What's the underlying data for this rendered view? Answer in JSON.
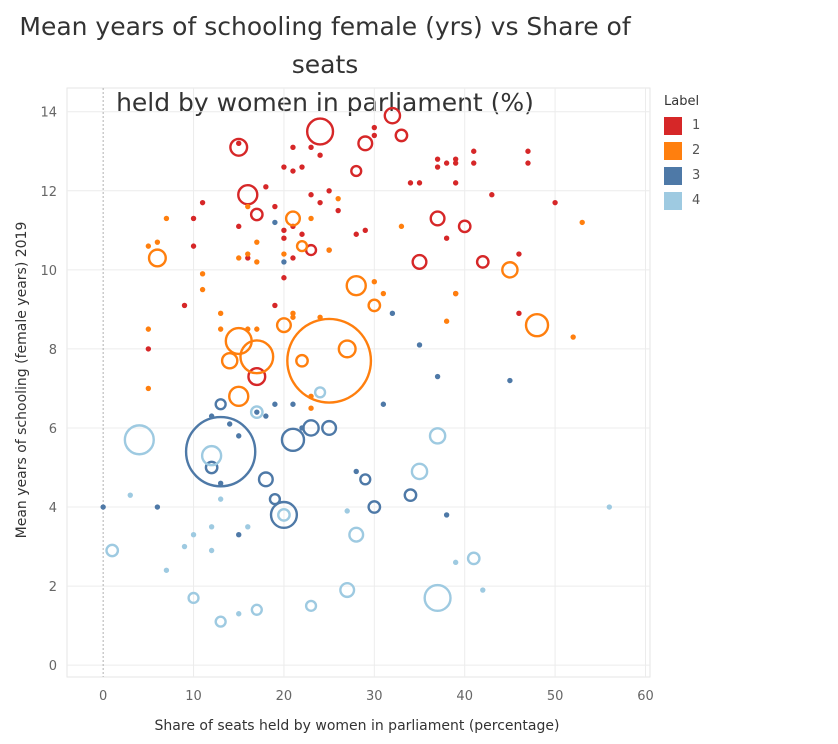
{
  "chart_data": {
    "type": "scatter",
    "title": "Mean years of schooling female (yrs) vs Share of seats held by women in parliament (%)",
    "title_lines": [
      "Mean years of schooling female (yrs) vs Share of seats",
      "held by women in parliament (%)"
    ],
    "xlabel": "Share of seats held by women in parliament (percentage)",
    "ylabel": "Mean years of schooling (female years) 2019",
    "xlim": [
      -4,
      60.5
    ],
    "ylim": [
      -0.3,
      14.6
    ],
    "xticks": [
      0,
      10,
      20,
      30,
      40,
      50,
      60
    ],
    "yticks": [
      0,
      2,
      4,
      6,
      8,
      10,
      12,
      14
    ],
    "grid": true,
    "legend": {
      "title": "Label",
      "placement": "right"
    },
    "series": [
      {
        "name": "1",
        "color": "#d62728",
        "points": [
          [
            15,
            13.1,
            2.2
          ],
          [
            15,
            13.2,
            0.6
          ],
          [
            21,
            13.1,
            0.6
          ],
          [
            23,
            13.1,
            0.9
          ],
          [
            24,
            13.5,
            3.4
          ],
          [
            24,
            12.9,
            0.6
          ],
          [
            28,
            12.5,
            1.3
          ],
          [
            29,
            13.2,
            1.8
          ],
          [
            30,
            13.6,
            0.6
          ],
          [
            30,
            13.4,
            0.6
          ],
          [
            32,
            13.9,
            2.0
          ],
          [
            33,
            13.4,
            1.5
          ],
          [
            37,
            12.8,
            1.1
          ],
          [
            37,
            12.6,
            0.6
          ],
          [
            38,
            12.7,
            0.6
          ],
          [
            39,
            12.7,
            0.6
          ],
          [
            39,
            12.8,
            0.6
          ],
          [
            41,
            13.0,
            0.6
          ],
          [
            41,
            12.7,
            0.6
          ],
          [
            47,
            13.0,
            0.6
          ],
          [
            47,
            12.7,
            0.9
          ],
          [
            11,
            11.7,
            0.6
          ],
          [
            16,
            11.9,
            2.5
          ],
          [
            17,
            11.4,
            1.5
          ],
          [
            18,
            12.1,
            0.6
          ],
          [
            19,
            11.6,
            0.6
          ],
          [
            20,
            12.6,
            0.6
          ],
          [
            21,
            12.5,
            0.6
          ],
          [
            22,
            12.6,
            0.6
          ],
          [
            23,
            11.9,
            0.6
          ],
          [
            24,
            11.7,
            0.6
          ],
          [
            25,
            12.0,
            0.6
          ],
          [
            26,
            11.5,
            0.9
          ],
          [
            34,
            12.2,
            0.9
          ],
          [
            35,
            12.2,
            0.9
          ],
          [
            39,
            12.2,
            0.9
          ],
          [
            43,
            11.9,
            0.9
          ],
          [
            50,
            11.7,
            0.6
          ],
          [
            10,
            11.3,
            0.6
          ],
          [
            10,
            10.6,
            0.6
          ],
          [
            15,
            11.1,
            0.6
          ],
          [
            16,
            10.3,
            1.1
          ],
          [
            20,
            10.8,
            1.1
          ],
          [
            20,
            11.0,
            0.6
          ],
          [
            21,
            10.3,
            0.9
          ],
          [
            21,
            11.1,
            0.6
          ],
          [
            22,
            10.9,
            1.1
          ],
          [
            23,
            10.5,
            1.3
          ],
          [
            25,
            10.5,
            0.6
          ],
          [
            28,
            10.9,
            0.6
          ],
          [
            29,
            11.0,
            0.6
          ],
          [
            35,
            10.2,
            1.8
          ],
          [
            37,
            11.3,
            1.8
          ],
          [
            38,
            10.8,
            0.9
          ],
          [
            40,
            11.1,
            1.5
          ],
          [
            42,
            10.2,
            1.5
          ],
          [
            46,
            10.4,
            0.6
          ],
          [
            20,
            9.8,
            1.1
          ],
          [
            19,
            9.1,
            0.6
          ],
          [
            9,
            9.1,
            0.6
          ],
          [
            39,
            9.4,
            0.9
          ],
          [
            46,
            8.9,
            0.6
          ],
          [
            5,
            8.0,
            0.6
          ],
          [
            17,
            7.3,
            2.2
          ]
        ]
      },
      {
        "name": "2",
        "color": "#ff7f0e",
        "points": [
          [
            5,
            10.6,
            1.1
          ],
          [
            6,
            10.3,
            2.2
          ],
          [
            6,
            10.7,
            0.6
          ],
          [
            7,
            11.3,
            0.6
          ],
          [
            11,
            9.9,
            0.6
          ],
          [
            11,
            9.5,
            0.6
          ],
          [
            13,
            8.9,
            0.6
          ],
          [
            15,
            10.3,
            0.6
          ],
          [
            16,
            11.6,
            1.1
          ],
          [
            16,
            10.4,
            0.6
          ],
          [
            17,
            10.2,
            0.6
          ],
          [
            17,
            10.7,
            0.6
          ],
          [
            20,
            10.4,
            0.6
          ],
          [
            21,
            11.3,
            1.8
          ],
          [
            21,
            8.9,
            0.6
          ],
          [
            22,
            10.6,
            1.3
          ],
          [
            23,
            11.3,
            0.6
          ],
          [
            25,
            10.5,
            0.6
          ],
          [
            26,
            11.8,
            0.6
          ],
          [
            33,
            11.1,
            0.6
          ],
          [
            28,
            9.6,
            2.5
          ],
          [
            30,
            9.7,
            0.6
          ],
          [
            31,
            9.4,
            0.6
          ],
          [
            30,
            9.1,
            1.5
          ],
          [
            39,
            9.4,
            0.6
          ],
          [
            45,
            10.0,
            2.0
          ],
          [
            53,
            11.2,
            0.9
          ],
          [
            5,
            8.5,
            0.9
          ],
          [
            13,
            8.5,
            0.9
          ],
          [
            16,
            8.5,
            0.9
          ],
          [
            17,
            8.5,
            0.9
          ],
          [
            20,
            8.6,
            1.8
          ],
          [
            21,
            8.8,
            0.6
          ],
          [
            24,
            8.8,
            0.9
          ],
          [
            38,
            8.7,
            1.1
          ],
          [
            48,
            8.6,
            2.9
          ],
          [
            52,
            8.3,
            0.9
          ],
          [
            15,
            8.2,
            3.4
          ],
          [
            17,
            7.8,
            4.3
          ],
          [
            14,
            7.7,
            2.0
          ],
          [
            22,
            7.7,
            1.5
          ],
          [
            25,
            7.7,
            11.0
          ],
          [
            27,
            8.0,
            2.2
          ],
          [
            5,
            7.0,
            0.6
          ],
          [
            15,
            6.8,
            2.5
          ],
          [
            23,
            6.5,
            0.9
          ],
          [
            23,
            6.8,
            0.6
          ]
        ]
      },
      {
        "name": "3",
        "color": "#4e79a7",
        "points": [
          [
            13,
            5.4,
            9.1
          ],
          [
            21,
            5.7,
            2.9
          ],
          [
            20,
            3.8,
            3.4
          ],
          [
            12,
            5.0,
            1.5
          ],
          [
            13,
            4.6,
            1.1
          ],
          [
            13,
            6.6,
            1.3
          ],
          [
            12,
            6.3,
            0.6
          ],
          [
            14,
            6.1,
            0.6
          ],
          [
            15,
            5.8,
            0.6
          ],
          [
            17,
            6.4,
            0.9
          ],
          [
            18,
            6.3,
            1.1
          ],
          [
            19,
            6.6,
            1.1
          ],
          [
            21,
            6.6,
            0.9
          ],
          [
            22,
            6.0,
            0.6
          ],
          [
            23,
            6.0,
            2.0
          ],
          [
            25,
            6.0,
            1.8
          ],
          [
            19,
            11.2,
            0.6
          ],
          [
            20,
            10.2,
            0.9
          ],
          [
            35,
            8.1,
            1.1
          ],
          [
            32,
            8.9,
            0.6
          ],
          [
            37,
            7.3,
            0.6
          ],
          [
            45,
            7.2,
            0.6
          ],
          [
            31,
            6.6,
            0.6
          ],
          [
            28,
            4.9,
            1.1
          ],
          [
            29,
            4.7,
            1.3
          ],
          [
            18,
            4.7,
            1.8
          ],
          [
            19,
            4.2,
            1.3
          ],
          [
            30,
            4.0,
            1.5
          ],
          [
            34,
            4.3,
            1.5
          ],
          [
            38,
            3.8,
            0.6
          ],
          [
            15,
            3.3,
            0.6
          ],
          [
            0,
            4.0,
            1.1
          ],
          [
            6,
            4.0,
            0.6
          ]
        ]
      },
      {
        "name": "4",
        "color": "#9ecae1",
        "points": [
          [
            4,
            5.7,
            3.8
          ],
          [
            12,
            5.3,
            2.5
          ],
          [
            17,
            6.4,
            1.5
          ],
          [
            24,
            6.9,
            1.3
          ],
          [
            37,
            5.8,
            2.0
          ],
          [
            35,
            4.9,
            2.0
          ],
          [
            3,
            4.3,
            0.9
          ],
          [
            13,
            4.2,
            1.1
          ],
          [
            12,
            3.5,
            0.6
          ],
          [
            16,
            3.5,
            0.9
          ],
          [
            10,
            3.3,
            0.6
          ],
          [
            1,
            2.9,
            1.5
          ],
          [
            9,
            3.0,
            0.6
          ],
          [
            12,
            2.9,
            0.9
          ],
          [
            7,
            2.4,
            0.9
          ],
          [
            20,
            3.8,
            1.5
          ],
          [
            27,
            3.9,
            0.9
          ],
          [
            28,
            3.3,
            1.8
          ],
          [
            39,
            2.6,
            0.9
          ],
          [
            41,
            2.7,
            1.5
          ],
          [
            42,
            1.9,
            1.1
          ],
          [
            56,
            4.0,
            1.1
          ],
          [
            10,
            1.7,
            1.3
          ],
          [
            13,
            1.1,
            1.3
          ],
          [
            15,
            1.3,
            1.1
          ],
          [
            17,
            1.4,
            1.3
          ],
          [
            23,
            1.5,
            1.3
          ],
          [
            27,
            1.9,
            1.8
          ],
          [
            37,
            1.7,
            3.4
          ]
        ]
      }
    ]
  }
}
